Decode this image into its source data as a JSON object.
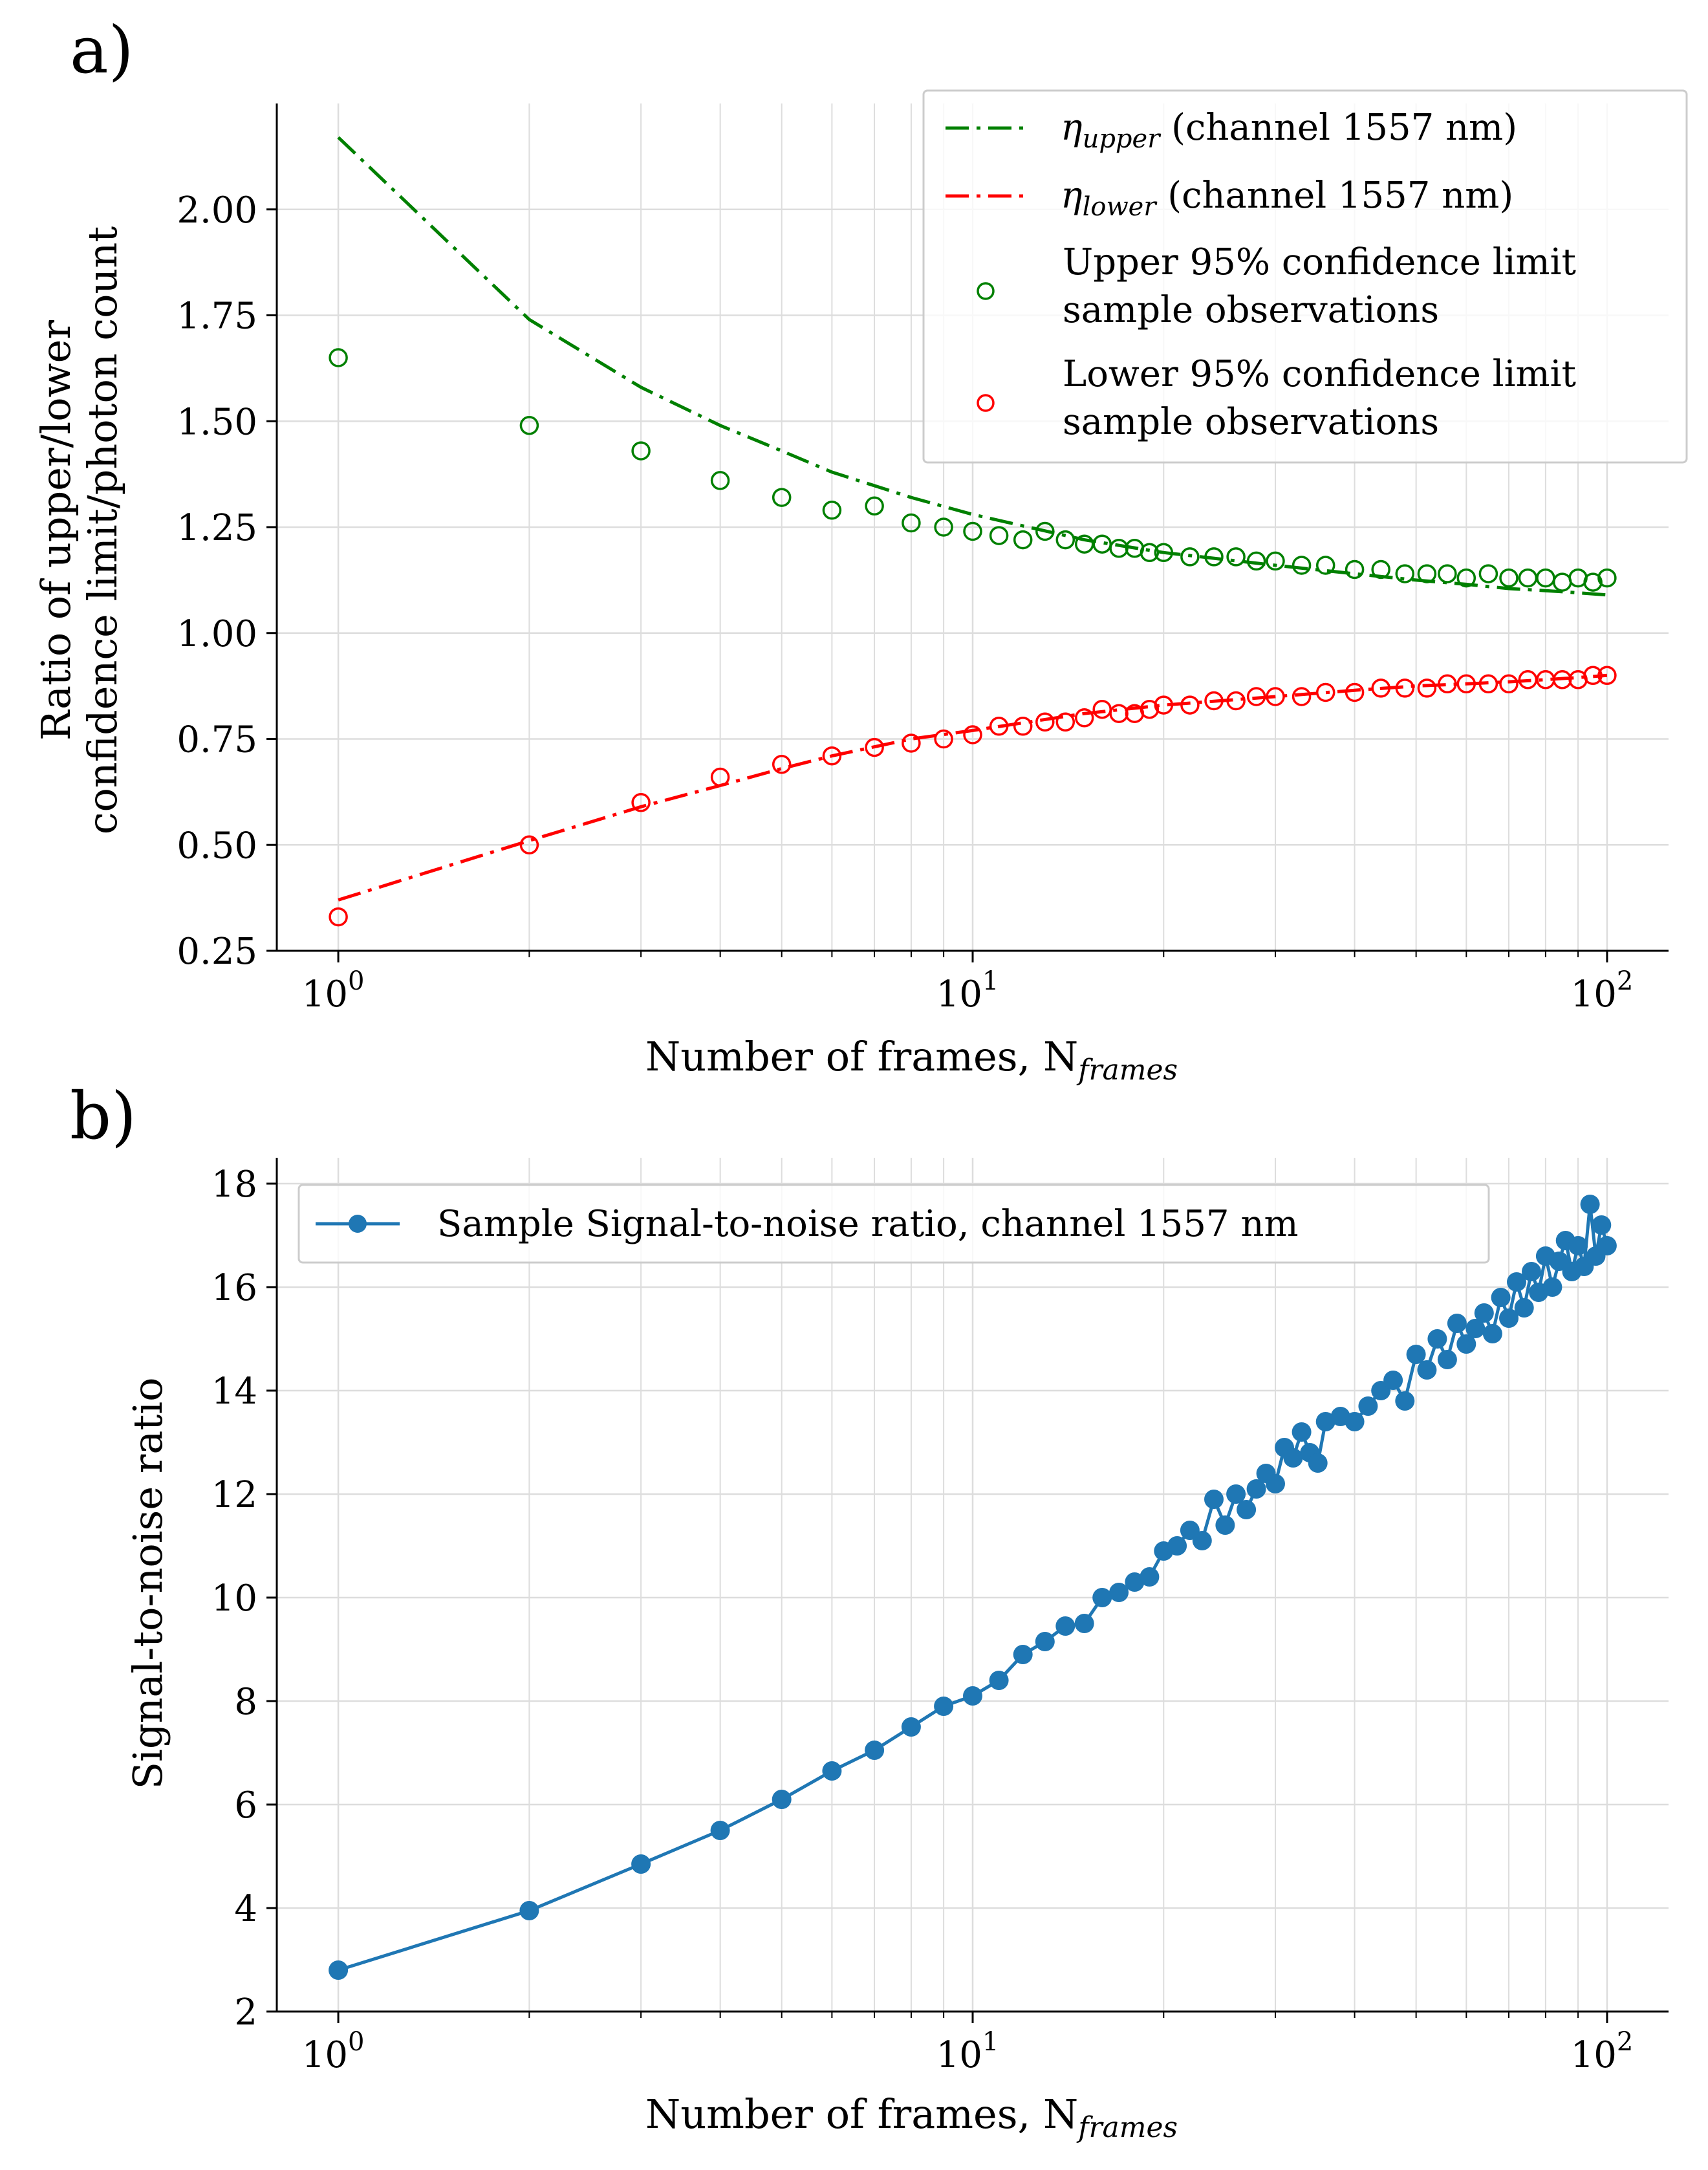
{
  "chart_data": [
    {
      "panel_label": "a)",
      "type": "line+scatter",
      "xscale": "log",
      "xlim": [
        0.8,
        125
      ],
      "ylim": [
        0.25,
        2.25
      ],
      "x_ticks": [
        {
          "value": 1,
          "base": "10",
          "exp": "0"
        },
        {
          "value": 10,
          "base": "10",
          "exp": "1"
        },
        {
          "value": 100,
          "base": "10",
          "exp": "2"
        }
      ],
      "y_ticks": [
        "0.25",
        "0.50",
        "0.75",
        "1.00",
        "1.25",
        "1.50",
        "1.75",
        "2.00"
      ],
      "xlabel": {
        "text": "Number of frames, N",
        "sub": "frames"
      },
      "ylabel": [
        "Ratio of upper/lower",
        "confidence limit/photon count"
      ],
      "legend_position": "top-right",
      "series": [
        {
          "name": "eta_upper",
          "kind": "dashdot",
          "color": "#008000",
          "legend": {
            "sym": "η",
            "sub": "upper",
            "rest": " (channel 1557 nm)"
          },
          "x": [
            1,
            2,
            3,
            4,
            5,
            6,
            8,
            10,
            15,
            20,
            30,
            40,
            50,
            60,
            70,
            80,
            90,
            100
          ],
          "y": [
            2.17,
            1.74,
            1.58,
            1.49,
            1.43,
            1.38,
            1.32,
            1.28,
            1.22,
            1.19,
            1.16,
            1.14,
            1.125,
            1.115,
            1.105,
            1.1,
            1.095,
            1.09
          ]
        },
        {
          "name": "eta_lower",
          "kind": "dashdot",
          "color": "#ff0000",
          "legend": {
            "sym": "η",
            "sub": "lower",
            "rest": " (channel 1557 nm)"
          },
          "x": [
            1,
            2,
            3,
            4,
            5,
            6,
            8,
            10,
            15,
            20,
            30,
            40,
            50,
            60,
            70,
            80,
            90,
            100
          ],
          "y": [
            0.37,
            0.51,
            0.59,
            0.64,
            0.68,
            0.71,
            0.75,
            0.77,
            0.81,
            0.83,
            0.85,
            0.865,
            0.875,
            0.88,
            0.885,
            0.89,
            0.895,
            0.9
          ]
        },
        {
          "name": "upper_obs",
          "kind": "scatter",
          "color": "#008000",
          "legend": {
            "lines": [
              "Upper 95% confidence limit",
              "sample observations"
            ]
          },
          "x": [
            1,
            2,
            3,
            4,
            5,
            6,
            7,
            8,
            9,
            10,
            11,
            12,
            13,
            14,
            15,
            16,
            17,
            18,
            19,
            20,
            22,
            24,
            26,
            28,
            30,
            33,
            36,
            40,
            44,
            48,
            52,
            56,
            60,
            65,
            70,
            75,
            80,
            85,
            90,
            95,
            100
          ],
          "y": [
            1.65,
            1.49,
            1.43,
            1.36,
            1.32,
            1.29,
            1.3,
            1.26,
            1.25,
            1.24,
            1.23,
            1.22,
            1.24,
            1.22,
            1.21,
            1.21,
            1.2,
            1.2,
            1.19,
            1.19,
            1.18,
            1.18,
            1.18,
            1.17,
            1.17,
            1.16,
            1.16,
            1.15,
            1.15,
            1.14,
            1.14,
            1.14,
            1.13,
            1.14,
            1.13,
            1.13,
            1.13,
            1.12,
            1.13,
            1.12,
            1.13
          ]
        },
        {
          "name": "lower_obs",
          "kind": "scatter",
          "color": "#ff0000",
          "legend": {
            "lines": [
              "Lower 95% confidence limit",
              "sample observations"
            ]
          },
          "x": [
            1,
            2,
            3,
            4,
            5,
            6,
            7,
            8,
            9,
            10,
            11,
            12,
            13,
            14,
            15,
            16,
            17,
            18,
            19,
            20,
            22,
            24,
            26,
            28,
            30,
            33,
            36,
            40,
            44,
            48,
            52,
            56,
            60,
            65,
            70,
            75,
            80,
            85,
            90,
            95,
            100
          ],
          "y": [
            0.33,
            0.5,
            0.6,
            0.66,
            0.69,
            0.71,
            0.73,
            0.74,
            0.75,
            0.76,
            0.78,
            0.78,
            0.79,
            0.79,
            0.8,
            0.82,
            0.81,
            0.81,
            0.82,
            0.83,
            0.83,
            0.84,
            0.84,
            0.85,
            0.85,
            0.85,
            0.86,
            0.86,
            0.87,
            0.87,
            0.87,
            0.88,
            0.88,
            0.88,
            0.88,
            0.89,
            0.89,
            0.89,
            0.89,
            0.9,
            0.9
          ]
        }
      ]
    },
    {
      "panel_label": "b)",
      "type": "line",
      "xscale": "log",
      "xlim": [
        0.8,
        125
      ],
      "ylim": [
        2,
        18.5
      ],
      "x_ticks": [
        {
          "value": 1,
          "base": "10",
          "exp": "0"
        },
        {
          "value": 10,
          "base": "10",
          "exp": "1"
        },
        {
          "value": 100,
          "base": "10",
          "exp": "2"
        }
      ],
      "y_ticks": [
        "2",
        "4",
        "6",
        "8",
        "10",
        "12",
        "14",
        "16",
        "18"
      ],
      "xlabel": {
        "text": "Number of frames, N",
        "sub": "frames"
      },
      "ylabel": [
        "Signal-to-noise ratio"
      ],
      "legend_position": "top-left",
      "series": [
        {
          "name": "Sample Signal-to-noise ratio, channel 1557 nm",
          "kind": "line-marker",
          "color": "#1f77b4",
          "x": [
            1,
            2,
            3,
            4,
            5,
            6,
            7,
            8,
            9,
            10,
            11,
            12,
            13,
            14,
            15,
            16,
            17,
            18,
            19,
            20,
            21,
            22,
            23,
            24,
            25,
            26,
            27,
            28,
            29,
            30,
            31,
            32,
            33,
            34,
            35,
            36,
            38,
            40,
            42,
            44,
            46,
            48,
            50,
            52,
            54,
            56,
            58,
            60,
            62,
            64,
            66,
            68,
            70,
            72,
            74,
            76,
            78,
            80,
            82,
            84,
            86,
            88,
            90,
            92,
            94,
            96,
            98,
            100
          ],
          "y": [
            2.8,
            3.95,
            4.85,
            5.5,
            6.1,
            6.65,
            7.05,
            7.5,
            7.9,
            8.1,
            8.4,
            8.9,
            9.15,
            9.45,
            9.5,
            10.0,
            10.1,
            10.3,
            10.4,
            10.9,
            11.0,
            11.3,
            11.1,
            11.9,
            11.4,
            12.0,
            11.7,
            12.1,
            12.4,
            12.2,
            12.9,
            12.7,
            13.2,
            12.8,
            12.6,
            13.4,
            13.5,
            13.4,
            13.7,
            14.0,
            14.2,
            13.8,
            14.7,
            14.4,
            15.0,
            14.6,
            15.3,
            14.9,
            15.2,
            15.5,
            15.1,
            15.8,
            15.4,
            16.1,
            15.6,
            16.3,
            15.9,
            16.6,
            16.0,
            16.5,
            16.9,
            16.3,
            16.8,
            16.4,
            17.6,
            16.6,
            17.2,
            16.8
          ]
        }
      ]
    }
  ]
}
